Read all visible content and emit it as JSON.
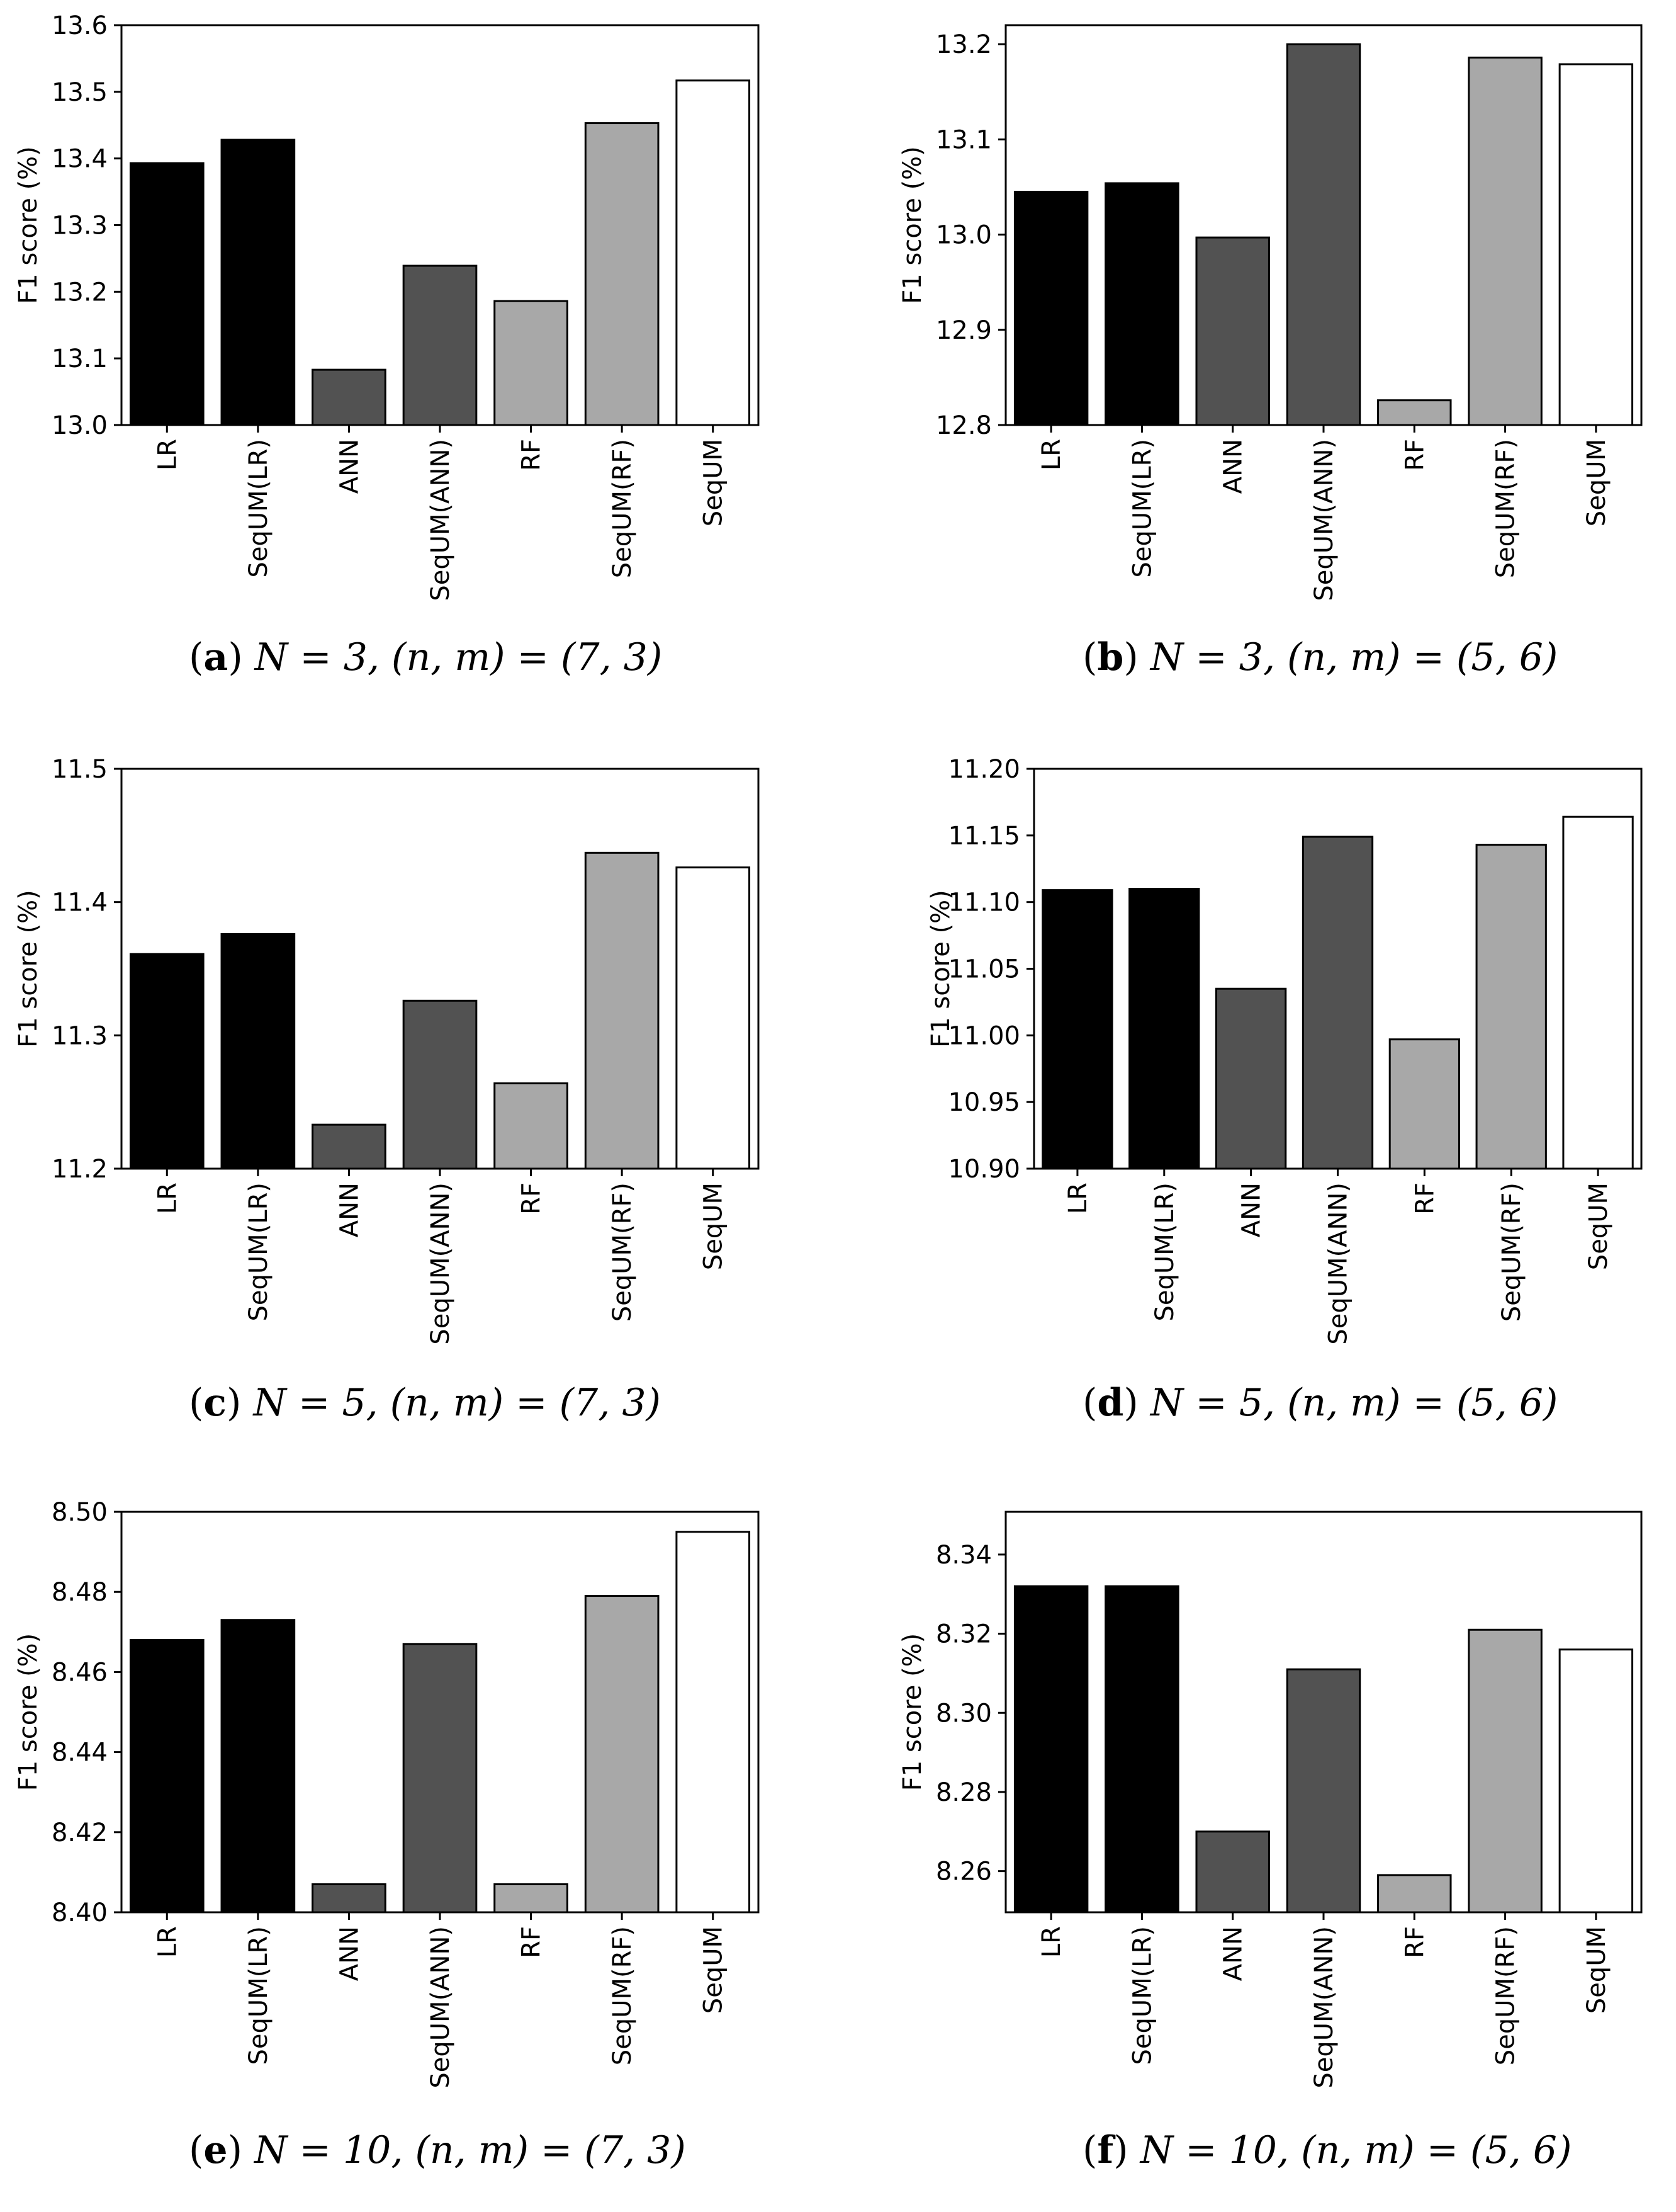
{
  "colors": {
    "LR": "#000000",
    "ANN": "#525252",
    "RF": "#a8a8a8",
    "SeqUM": "#ffffff",
    "edge": "#000000"
  },
  "chart_data": [
    {
      "type": "bar",
      "panel": "a",
      "caption": {
        "label": "a",
        "text": "N = 3, (n, m) = (7, 3)"
      },
      "ylabel": "F1 score (%)",
      "categories": [
        "LR",
        "SeqUM(LR)",
        "ANN",
        "SeqUM(ANN)",
        "RF",
        "SeqUM(RF)",
        "SeqUM"
      ],
      "values": [
        13.393,
        13.428,
        13.083,
        13.239,
        13.186,
        13.453,
        13.517
      ],
      "ylim": [
        13.0,
        13.6
      ],
      "yticks": [
        "13.0",
        "13.1",
        "13.2",
        "13.3",
        "13.4",
        "13.5",
        "13.6"
      ]
    },
    {
      "type": "bar",
      "panel": "b",
      "caption": {
        "label": "b",
        "text": "N = 3, (n, m) = (5, 6)"
      },
      "ylabel": "F1 score (%)",
      "categories": [
        "LR",
        "SeqUM(LR)",
        "ANN",
        "SeqUM(ANN)",
        "RF",
        "SeqUM(RF)",
        "SeqUM"
      ],
      "values": [
        13.045,
        13.054,
        12.997,
        13.2,
        12.826,
        13.186,
        13.179
      ],
      "ylim": [
        12.8,
        13.22
      ],
      "yticks": [
        "12.8",
        "12.9",
        "13.0",
        "13.1",
        "13.2"
      ]
    },
    {
      "type": "bar",
      "panel": "c",
      "caption": {
        "label": "c",
        "text": "N = 5, (n, m) = (7, 3)"
      },
      "ylabel": "F1 score (%)",
      "categories": [
        "LR",
        "SeqUM(LR)",
        "ANN",
        "SeqUM(ANN)",
        "RF",
        "SeqUM(RF)",
        "SeqUM"
      ],
      "values": [
        11.361,
        11.376,
        11.233,
        11.326,
        11.264,
        11.437,
        11.426
      ],
      "ylim": [
        11.2,
        11.5
      ],
      "yticks": [
        "11.2",
        "11.3",
        "11.4",
        "11.5"
      ]
    },
    {
      "type": "bar",
      "panel": "d",
      "caption": {
        "label": "d",
        "text": "N = 5, (n, m) = (5, 6)"
      },
      "ylabel": "F1 score (%)",
      "categories": [
        "LR",
        "SeqUM(LR)",
        "ANN",
        "SeqUM(ANN)",
        "RF",
        "SeqUM(RF)",
        "SeqUM"
      ],
      "values": [
        11.109,
        11.11,
        11.035,
        11.149,
        10.997,
        11.143,
        11.164
      ],
      "ylim": [
        10.9,
        11.2
      ],
      "yticks": [
        "10.90",
        "10.95",
        "11.00",
        "11.05",
        "11.10",
        "11.15",
        "11.20"
      ]
    },
    {
      "type": "bar",
      "panel": "e",
      "caption": {
        "label": "e",
        "text": "N = 10, (n, m) = (7, 3)"
      },
      "ylabel": "F1 score (%)",
      "categories": [
        "LR",
        "SeqUM(LR)",
        "ANN",
        "SeqUM(ANN)",
        "RF",
        "SeqUM(RF)",
        "SeqUM"
      ],
      "values": [
        8.468,
        8.473,
        8.407,
        8.467,
        8.407,
        8.479,
        8.495
      ],
      "ylim": [
        8.4,
        8.5
      ],
      "yticks": [
        "8.40",
        "8.42",
        "8.44",
        "8.46",
        "8.48",
        "8.50"
      ]
    },
    {
      "type": "bar",
      "panel": "f",
      "caption": {
        "label": "f",
        "text": "N = 10, (n, m) = (5, 6)"
      },
      "ylabel": "F1 score (%)",
      "categories": [
        "LR",
        "SeqUM(LR)",
        "ANN",
        "SeqUM(ANN)",
        "RF",
        "SeqUM(RF)",
        "SeqUM"
      ],
      "values": [
        8.332,
        8.332,
        8.27,
        8.311,
        8.259,
        8.321,
        8.316
      ],
      "ylim": [
        8.2496,
        8.3508
      ],
      "yticks": [
        "8.26",
        "8.28",
        "8.30",
        "8.32",
        "8.34"
      ]
    }
  ]
}
